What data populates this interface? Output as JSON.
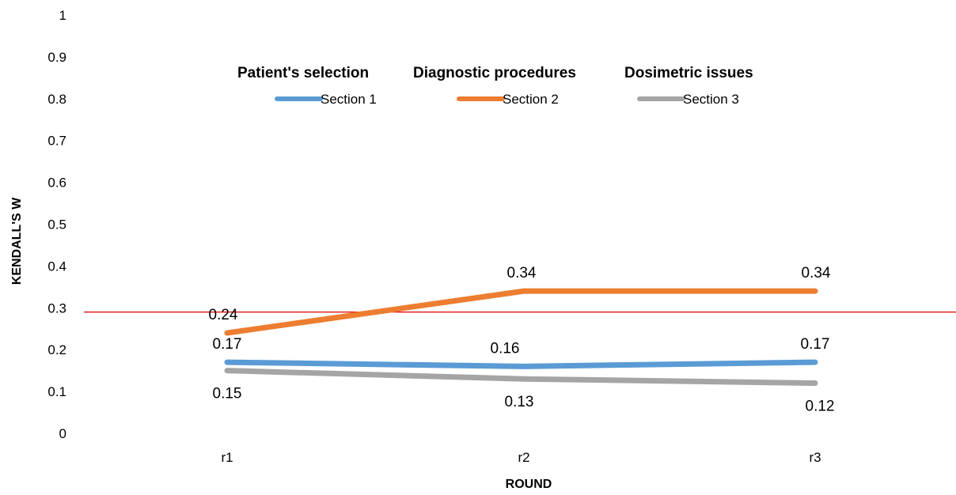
{
  "chart_data": {
    "type": "line",
    "title": "",
    "xlabel": "ROUND",
    "ylabel": "KENDALL'S W",
    "categories": [
      "r1",
      "r2",
      "r3"
    ],
    "yticks": [
      "0",
      "0.1",
      "0.2",
      "0.3",
      "0.4",
      "0.5",
      "0.6",
      "0.7",
      "0.8",
      "0.9",
      "1"
    ],
    "ylim": [
      0,
      1
    ],
    "grid": false,
    "legend_position": "top",
    "reference_line": {
      "y": 0.29,
      "color": "#e00000"
    },
    "series": [
      {
        "name": "Section 1",
        "group_title": "Patient's selection",
        "values": [
          0.17,
          0.16,
          0.17
        ],
        "labels": [
          "0.17",
          "0.16",
          "0.17"
        ],
        "label_side": "above",
        "color": "#5b9bd5"
      },
      {
        "name": "Section 2",
        "group_title": "Diagnostic procedures",
        "values": [
          0.24,
          0.34,
          0.34
        ],
        "labels": [
          "0.24",
          "0.34",
          "0.34"
        ],
        "label_side": "above",
        "color": "#ed7d31"
      },
      {
        "name": "Section 3",
        "group_title": "Dosimetric  issues",
        "values": [
          0.15,
          0.13,
          0.12
        ],
        "labels": [
          "0.15",
          "0.13",
          "0.12"
        ],
        "label_side": "below",
        "color": "#a5a5a5"
      }
    ]
  }
}
